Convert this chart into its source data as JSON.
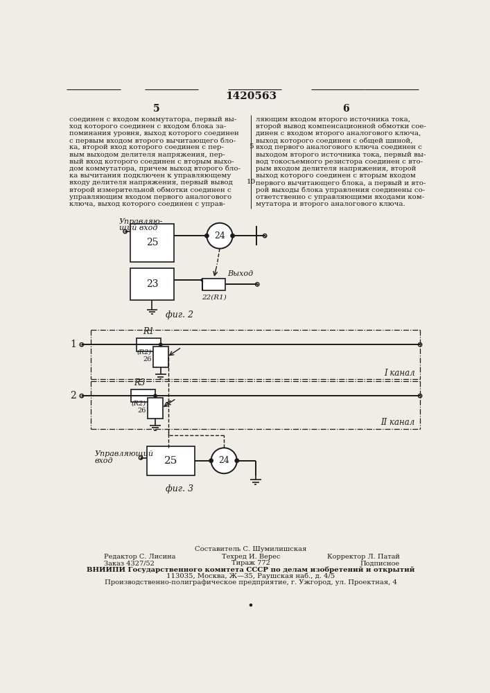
{
  "page_title": "1420563",
  "col_left_num": "5",
  "col_right_num": "6",
  "text_left": "соединен с входом коммутатора, первый вы-\nход которого соединен с входом блока за-\nпоминания уровня, выход которого соединен\nс первым входом второго вычитающего бло-\nка, второй вход которого соединен с пер-\nвым выходом делителя напряжения, пер-\nвый вход которого соединен с вторым выхо-\nдом коммутатора, причем выход второго бло-\nка вычитания подключен к управляющему\nвходу делителя напряжения, первый вывод\nвторой измерительной обмотки соединен с\nуправляющим входом первого аналогового\nключа, выход которого соединен с управ-",
  "text_right": "ляющим входом второго источника тока,\nвторой вывод компенсационной обмотки сое-\nдинен с входом второго аналогового ключа,\nвыход которого соединен с общей шиной,\nвход первого аналогового ключа соединен с\nвыходом второго источника тока, первый вы-\nвод токосъемного резистора соединен с вто-\nрым входом делителя напряжения, второй\nвыход которого соединен с вторым входом\nпервого вычитающего блока, а первый и вто-\nрой выходы блока управления соединены со-\nответственно с управляющими входами ком-\nмутатора и второго аналогового ключа.",
  "fig2_label": "фиг. 2",
  "fig3_label": "фиг. 3",
  "footer_line0": "Составитель С. Шумилишская",
  "footer_line1_l": "Редактор С. Лисина",
  "footer_line1_m": "Техред И. Верес",
  "footer_line1_r": "Корректор Л. Патай",
  "footer_line2_l": "Заказ 4327/52",
  "footer_line2_m": "Тираж 772",
  "footer_line2_r": "Подписное",
  "footer_line3": "ВНИИПИ Государственного комитета СССР по делам изобретений и открытий",
  "footer_line4": "113035, Москва, Ж—35, Раушская наб., д. 4/5",
  "footer_line5": "Производственно-полиграфическое предприятие, г. Ужгород, ул. Проектная, 4",
  "bg_color": "#f0ede6",
  "line_color": "#1a1a1a",
  "text_color": "#1a1a1a"
}
